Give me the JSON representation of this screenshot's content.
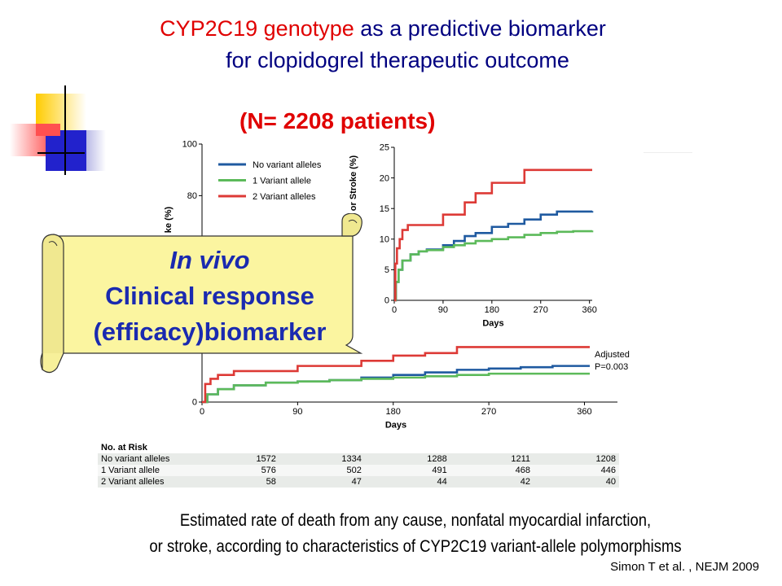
{
  "title": {
    "line1_red": "CYP2C19 genotype",
    "line1_blue": " as a predictive biomarker",
    "line2": "for clopidogrel therapeutic outcome"
  },
  "subtitle": "(N= 2208 patients)",
  "callout": {
    "line1": "In vivo",
    "line2": "Clinical response",
    "line3": "(efficacy)biomarker"
  },
  "colors": {
    "no_variant": "#1f5aa0",
    "one_variant": "#5cba5a",
    "two_variant": "#dd3a36",
    "title_blue": "#000080",
    "title_red": "#e00000",
    "scroll_fill": "#fbf5a0"
  },
  "chart_data": [
    {
      "type": "line",
      "xlabel": "Days",
      "ylabel": "ke (%)",
      "xlim": [
        0,
        365
      ],
      "ylim": [
        0,
        100
      ],
      "xticks": [
        0,
        90,
        180,
        270,
        360
      ],
      "yticks": [
        0,
        80,
        100
      ],
      "legend": [
        "No variant alleles",
        "1 Variant allele",
        "2 Variant alleles"
      ],
      "annotation": [
        "Adjusted",
        "P=0.003"
      ],
      "series": [
        {
          "name": "No variant alleles",
          "x": [
            0,
            5,
            15,
            30,
            60,
            90,
            120,
            150,
            180,
            210,
            240,
            270,
            300,
            330,
            365
          ],
          "y": [
            0,
            3,
            5,
            6.5,
            7.5,
            8,
            8.5,
            9.5,
            10.5,
            11.5,
            12.5,
            13,
            13.5,
            14,
            14
          ]
        },
        {
          "name": "1 Variant allele",
          "x": [
            0,
            5,
            15,
            30,
            60,
            90,
            120,
            150,
            180,
            210,
            240,
            270,
            300,
            330,
            365
          ],
          "y": [
            0,
            3,
            5,
            6.5,
            7.5,
            8,
            8.5,
            9,
            9.5,
            10,
            10.5,
            11,
            11,
            11,
            11
          ]
        },
        {
          "name": "2 Variant alleles",
          "x": [
            0,
            3,
            8,
            15,
            30,
            60,
            90,
            120,
            150,
            180,
            210,
            240,
            270,
            300,
            330,
            365
          ],
          "y": [
            0,
            7,
            9,
            10.5,
            12,
            12,
            14,
            14,
            16,
            18,
            19,
            21.3,
            21.3,
            21.3,
            21.3,
            21.3
          ]
        }
      ]
    },
    {
      "type": "line",
      "xlabel": "Days",
      "ylabel": "or Stroke (%)",
      "xlim": [
        0,
        365
      ],
      "ylim": [
        0,
        25
      ],
      "xticks": [
        0,
        90,
        180,
        270,
        360
      ],
      "yticks": [
        0,
        5,
        10,
        15,
        20,
        25
      ],
      "series": [
        {
          "name": "No variant alleles",
          "x": [
            0,
            3,
            8,
            15,
            30,
            45,
            60,
            90,
            110,
            130,
            150,
            180,
            210,
            240,
            270,
            300,
            330,
            365
          ],
          "y": [
            0,
            3,
            5,
            6.5,
            7.5,
            8,
            8.3,
            9,
            9.7,
            10.5,
            11,
            12,
            12.5,
            13.2,
            14,
            14.5,
            14.5,
            14.6
          ]
        },
        {
          "name": "1 Variant allele",
          "x": [
            0,
            3,
            8,
            15,
            30,
            45,
            60,
            90,
            110,
            130,
            150,
            180,
            210,
            240,
            270,
            300,
            330,
            365
          ],
          "y": [
            0,
            3,
            5,
            6.5,
            7.5,
            8,
            8.2,
            8.7,
            9,
            9.3,
            9.7,
            10,
            10.3,
            10.7,
            11,
            11.2,
            11.3,
            11.4
          ]
        },
        {
          "name": "2 Variant alleles",
          "x": [
            0,
            2,
            5,
            10,
            15,
            25,
            60,
            90,
            120,
            130,
            140,
            150,
            180,
            190,
            240,
            270,
            300,
            330,
            365
          ],
          "y": [
            0,
            6,
            8.5,
            10,
            11.5,
            12.3,
            12.3,
            14,
            14,
            16,
            16,
            17.5,
            19.2,
            19.2,
            21.3,
            21.3,
            21.3,
            21.3,
            21.3
          ]
        }
      ]
    }
  ],
  "risk_table": {
    "header": "No. at Risk",
    "rows": [
      {
        "label": "No variant alleles",
        "values": [
          "1572",
          "1334",
          "1288",
          "1211",
          "1208"
        ]
      },
      {
        "label": "1 Variant allele",
        "values": [
          "576",
          "502",
          "491",
          "468",
          "446"
        ]
      },
      {
        "label": "2 Variant alleles",
        "values": [
          "58",
          "47",
          "44",
          "42",
          "40"
        ]
      }
    ]
  },
  "caption": {
    "line1": "Estimated rate of death from any cause, nonfatal myocardial infarction,",
    "line2": "or stroke, according to characteristics of CYP2C19 variant-allele polymorphisms"
  },
  "citation": "Simon T et al. , NEJM 2009"
}
